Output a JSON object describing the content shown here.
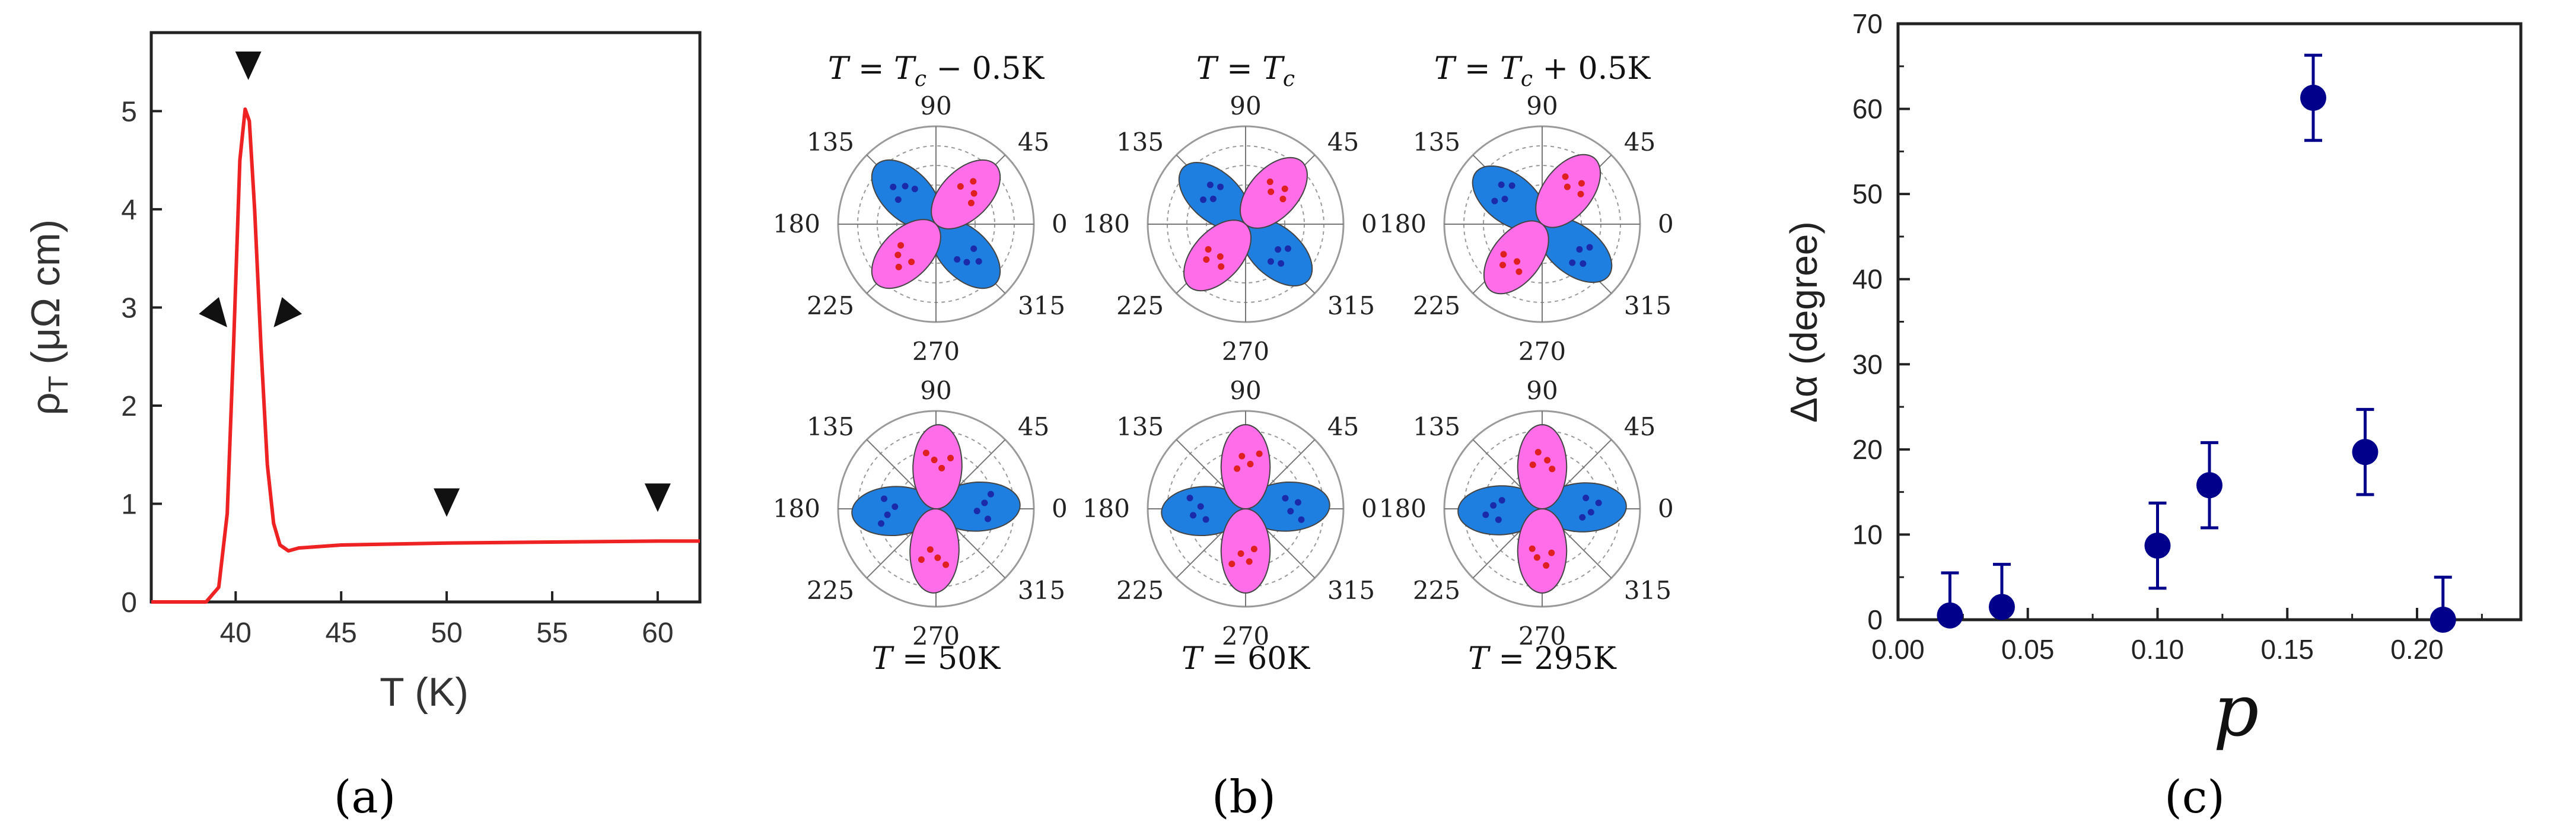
{
  "panel_labels": [
    "(a)",
    "(b)",
    "(c)"
  ],
  "chart_data": [
    {
      "type": "line",
      "panel": "(a)",
      "xlabel": "T (K)",
      "ylabel": "ρT (μΩ cm)",
      "ylabel_main": "ρ",
      "ylabel_sub": "T",
      "ylabel_rest": " (μΩ cm)",
      "xlim": [
        36,
        62
      ],
      "ylim": [
        0,
        5.8
      ],
      "xticks": [
        40,
        45,
        50,
        55,
        60
      ],
      "yticks": [
        0,
        1,
        2,
        3,
        4,
        5
      ],
      "color": "#ee2222",
      "series": [
        {
          "name": "rho_T",
          "x": [
            36,
            38.6,
            39.2,
            39.6,
            39.9,
            40.2,
            40.45,
            40.65,
            40.9,
            41.2,
            41.5,
            41.8,
            42.1,
            42.5,
            43,
            45,
            50,
            55,
            60,
            62
          ],
          "y": [
            0,
            0,
            0.15,
            0.9,
            2.6,
            4.5,
            5.02,
            4.9,
            4.0,
            2.6,
            1.4,
            0.8,
            0.58,
            0.52,
            0.55,
            0.58,
            0.6,
            0.61,
            0.62,
            0.62
          ]
        }
      ],
      "markers": [
        {
          "x": 40.6,
          "y": 5.45,
          "dir": "down"
        },
        {
          "x": 39.2,
          "y": 2.9,
          "dir": "downright"
        },
        {
          "x": 42.2,
          "y": 2.9,
          "dir": "downleft"
        },
        {
          "x": 50,
          "y": 1.0,
          "dir": "down"
        },
        {
          "x": 60,
          "y": 1.05,
          "dir": "down"
        }
      ]
    },
    {
      "type": "polar",
      "panel": "(b)",
      "angle_labels": [
        "0",
        "45",
        "90",
        "135",
        "180",
        "225",
        "270",
        "315"
      ],
      "colors": {
        "blue": "#1e7fe0",
        "pink": "#ff6ee8",
        "blue_dots": "#1a2aa8",
        "red_dots": "#e02020"
      },
      "plots": [
        {
          "title_parts": [
            "T",
            " = ",
            "T",
            "c",
            " − 0.5K"
          ],
          "title_pos": "top",
          "blue_angle": 315,
          "pink_angle": 45
        },
        {
          "title_parts": [
            "T",
            " = ",
            "T",
            "c",
            ""
          ],
          "title_pos": "top",
          "blue_angle": 318,
          "pink_angle": 48
        },
        {
          "title_parts": [
            "T",
            " = ",
            "T",
            "c",
            " + 0.5K"
          ],
          "title_pos": "top",
          "blue_angle": 322,
          "pink_angle": 52
        },
        {
          "title_parts": [
            "T",
            " = 50K"
          ],
          "title_pos": "bottom",
          "blue_angle": 3,
          "pink_angle": 88
        },
        {
          "title_parts": [
            "T",
            " = 60K"
          ],
          "title_pos": "bottom",
          "blue_angle": 3,
          "pink_angle": 90
        },
        {
          "title_parts": [
            "T",
            " = 295K"
          ],
          "title_pos": "bottom",
          "blue_angle": 2,
          "pink_angle": 90
        }
      ]
    },
    {
      "type": "scatter",
      "panel": "(c)",
      "xlabel": "p",
      "ylabel": "Δα (degree)",
      "xlim": [
        0.0,
        0.24
      ],
      "ylim": [
        0,
        70
      ],
      "xticks": [
        "0.00",
        "0.05",
        "0.10",
        "0.15",
        "0.20"
      ],
      "yticks": [
        0,
        10,
        20,
        30,
        40,
        50,
        60,
        70
      ],
      "color": "#00008b",
      "points": [
        {
          "x": 0.02,
          "y": 0.5,
          "err": 5.0
        },
        {
          "x": 0.04,
          "y": 1.5,
          "err": 5.0
        },
        {
          "x": 0.1,
          "y": 8.7,
          "err": 5.0
        },
        {
          "x": 0.12,
          "y": 15.8,
          "err": 5.0
        },
        {
          "x": 0.16,
          "y": 61.3,
          "err": 5.0
        },
        {
          "x": 0.18,
          "y": 19.7,
          "err": 5.0
        },
        {
          "x": 0.21,
          "y": 0.0,
          "err": 5.0
        }
      ]
    }
  ]
}
